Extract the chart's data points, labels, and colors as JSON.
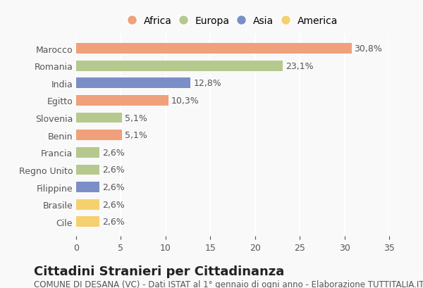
{
  "countries": [
    "Marocco",
    "Romania",
    "India",
    "Egitto",
    "Slovenia",
    "Benin",
    "Francia",
    "Regno Unito",
    "Filippine",
    "Brasile",
    "Cile"
  ],
  "values": [
    30.8,
    23.1,
    12.8,
    10.3,
    5.1,
    5.1,
    2.6,
    2.6,
    2.6,
    2.6,
    2.6
  ],
  "labels": [
    "30,8%",
    "23,1%",
    "12,8%",
    "10,3%",
    "5,1%",
    "5,1%",
    "2,6%",
    "2,6%",
    "2,6%",
    "2,6%",
    "2,6%"
  ],
  "continents": [
    "Africa",
    "Europa",
    "Asia",
    "Africa",
    "Europa",
    "Africa",
    "Europa",
    "Europa",
    "Asia",
    "America",
    "America"
  ],
  "colors": {
    "Africa": "#F0A07A",
    "Europa": "#B5C98E",
    "Asia": "#7B8EC8",
    "America": "#F5D06E"
  },
  "legend_order": [
    "Africa",
    "Europa",
    "Asia",
    "America"
  ],
  "title": "Cittadini Stranieri per Cittadinanza",
  "subtitle": "COMUNE DI DESANA (VC) - Dati ISTAT al 1° gennaio di ogni anno - Elaborazione TUTTITALIA.IT",
  "xlim": [
    0,
    35
  ],
  "xticks": [
    0,
    5,
    10,
    15,
    20,
    25,
    30,
    35
  ],
  "background_color": "#f9f9f9",
  "grid_color": "#ffffff",
  "bar_height": 0.6,
  "title_fontsize": 13,
  "subtitle_fontsize": 8.5,
  "label_fontsize": 9,
  "tick_fontsize": 9,
  "legend_fontsize": 10
}
